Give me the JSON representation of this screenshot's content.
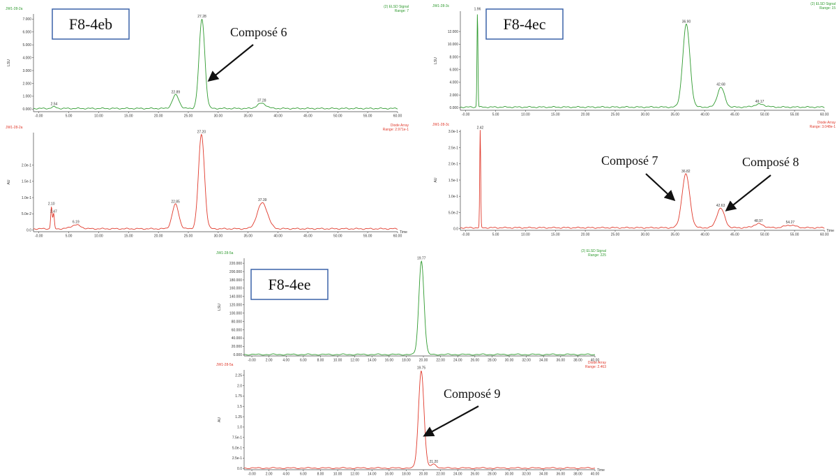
{
  "colors": {
    "elsd": "#2e9a2e",
    "dad": "#e0392b",
    "box_border": "#3a62a8",
    "axis": "#444444"
  },
  "chart_data": [
    {
      "type": "line",
      "sample": "F8-4eb",
      "elsd": {
        "run_id": "JW1-28-2a",
        "signal": "(2) ELSD Signal",
        "range": "Range: 7",
        "ylabel": "LSU",
        "xlim": [
          -0.9,
          60
        ],
        "ylim": [
          -0.2,
          7.4
        ],
        "y_ticks": [
          {
            "v": 0,
            "l": "0.000"
          },
          {
            "v": 1,
            "l": "1.000"
          },
          {
            "v": 2,
            "l": "2.000"
          },
          {
            "v": 3,
            "l": "3.000"
          },
          {
            "v": 4,
            "l": "4.000"
          },
          {
            "v": 5,
            "l": "5.000"
          },
          {
            "v": 6,
            "l": "6.000"
          },
          {
            "v": 7,
            "l": "7.000"
          }
        ],
        "x_ticks": [
          "-0.00",
          "5.00",
          "10.00",
          "15.00",
          "20.00",
          "25.00",
          "30.00",
          "35.00",
          "40.00",
          "45.00",
          "50.00",
          "55.00",
          "60.00"
        ],
        "baseline": 0.05,
        "peaks": [
          {
            "t": 2.54,
            "h": 0.12,
            "w": 0.4,
            "label": "2.54"
          },
          {
            "t": 22.89,
            "h": 1.05,
            "w": 0.55,
            "label": "22.89"
          },
          {
            "t": 27.28,
            "h": 6.95,
            "w": 0.48,
            "label": "27.28"
          },
          {
            "t": 37.28,
            "h": 0.4,
            "w": 0.75,
            "label": "37.28"
          }
        ]
      },
      "dad": {
        "run_id": "JW1-28-2a",
        "signal": "Diode Array",
        "range": "Range: 2.971e-1",
        "ylabel": "AU",
        "xlabel": "Time",
        "xlim": [
          -0.9,
          60
        ],
        "ylim": [
          -0.005,
          0.3
        ],
        "y_ticks": [
          {
            "v": 0,
            "l": "0.0"
          },
          {
            "v": 0.05,
            "l": "5.0e-2"
          },
          {
            "v": 0.1,
            "l": "1.0e-1"
          },
          {
            "v": 0.15,
            "l": "1.5e-1"
          },
          {
            "v": 0.2,
            "l": "2.0e-1"
          }
        ],
        "x_ticks": [
          "-0.00",
          "5.00",
          "10.00",
          "15.00",
          "20.00",
          "25.00",
          "30.00",
          "35.00",
          "40.00",
          "45.00",
          "50.00",
          "55.00",
          "60.00"
        ],
        "baseline": 0.004,
        "peaks": [
          {
            "t": 2.1,
            "h": 0.068,
            "w": 0.12,
            "label": "2.10"
          },
          {
            "t": 2.47,
            "h": 0.045,
            "w": 0.12,
            "label": "2.47"
          },
          {
            "t": 6.19,
            "h": 0.012,
            "w": 0.8,
            "label": "6.19"
          },
          {
            "t": 22.85,
            "h": 0.075,
            "w": 0.55,
            "label": "22.85"
          },
          {
            "t": 27.2,
            "h": 0.29,
            "w": 0.5,
            "label": "27.20"
          },
          {
            "t": 37.39,
            "h": 0.08,
            "w": 0.85,
            "label": "37.39"
          }
        ]
      }
    },
    {
      "type": "line",
      "sample": "F8-4ec",
      "elsd": {
        "run_id": "JW1-28-3c",
        "signal": "(2) ELSD Signal",
        "range": "Range: 15",
        "ylabel": "LSU",
        "xlim": [
          -0.9,
          60
        ],
        "ylim": [
          -0.4,
          15.2
        ],
        "y_ticks": [
          {
            "v": 0,
            "l": "0.000"
          },
          {
            "v": 2,
            "l": "2.000"
          },
          {
            "v": 4,
            "l": "4.000"
          },
          {
            "v": 6,
            "l": "6.000"
          },
          {
            "v": 8,
            "l": "8.000"
          },
          {
            "v": 10,
            "l": "10.000"
          },
          {
            "v": 12,
            "l": "12.000"
          }
        ],
        "x_ticks": [
          "-0.00",
          "5.00",
          "10.00",
          "15.00",
          "20.00",
          "25.00",
          "30.00",
          "35.00",
          "40.00",
          "45.00",
          "50.00",
          "55.00",
          "60.00"
        ],
        "baseline": 0.1,
        "peaks": [
          {
            "t": 1.96,
            "h": 15.0,
            "w": 0.08,
            "label": "1.96"
          },
          {
            "t": 36.9,
            "h": 13.0,
            "w": 0.6,
            "label": "36.90"
          },
          {
            "t": 42.68,
            "h": 3.1,
            "w": 0.6,
            "label": "42.68"
          },
          {
            "t": 49.17,
            "h": 0.45,
            "w": 0.9,
            "label": "49.17"
          }
        ]
      },
      "dad": {
        "run_id": "JW1-28-3c",
        "signal": "Diode Array",
        "range": "Range: 3.048e-1",
        "ylabel": "AU",
        "xlabel": "Time",
        "xlim": [
          -0.9,
          60
        ],
        "ylim": [
          -0.005,
          0.305
        ],
        "y_ticks": [
          {
            "v": 0,
            "l": "0.0"
          },
          {
            "v": 0.05,
            "l": "5.0e-2"
          },
          {
            "v": 0.1,
            "l": "1.0e-1"
          },
          {
            "v": 0.15,
            "l": "1.5e-1"
          },
          {
            "v": 0.2,
            "l": "2.0e-1"
          },
          {
            "v": 0.25,
            "l": "2.5e-1"
          },
          {
            "v": 0.3,
            "l": "3.0e-1"
          }
        ],
        "x_ticks": [
          "-0.00",
          "5.00",
          "10.00",
          "15.00",
          "20.00",
          "25.00",
          "30.00",
          "35.00",
          "40.00",
          "45.00",
          "50.00",
          "55.00",
          "60.00"
        ],
        "baseline": 0.003,
        "peaks": [
          {
            "t": 2.42,
            "h": 0.3,
            "w": 0.08,
            "label": "2.42"
          },
          {
            "t": 36.82,
            "h": 0.165,
            "w": 0.65,
            "label": "36.82"
          },
          {
            "t": 42.63,
            "h": 0.06,
            "w": 0.65,
            "label": "42.63"
          },
          {
            "t": 48.97,
            "h": 0.012,
            "w": 0.8,
            "label": "48.97"
          },
          {
            "t": 54.27,
            "h": 0.008,
            "w": 0.9,
            "label": "54.27"
          }
        ]
      }
    },
    {
      "type": "line",
      "sample": "F8-4ee",
      "elsd": {
        "run_id": "JW1-28-5a",
        "signal": "(2) ELSD Signal",
        "range": "Range: 225",
        "ylabel": "LSU",
        "xlim": [
          -0.9,
          40
        ],
        "ylim": [
          -3,
          232
        ],
        "y_ticks": [
          {
            "v": 0,
            "l": "0.000"
          },
          {
            "v": 20,
            "l": "20.000"
          },
          {
            "v": 40,
            "l": "40.000"
          },
          {
            "v": 60,
            "l": "60.000"
          },
          {
            "v": 80,
            "l": "80.000"
          },
          {
            "v": 100,
            "l": "100.000"
          },
          {
            "v": 120,
            "l": "120.000"
          },
          {
            "v": 140,
            "l": "140.000"
          },
          {
            "v": 160,
            "l": "160.000"
          },
          {
            "v": 180,
            "l": "180.000"
          },
          {
            "v": 200,
            "l": "200.000"
          },
          {
            "v": 220,
            "l": "220.000"
          }
        ],
        "x_ticks": [
          "-0.00",
          "2.00",
          "4.00",
          "6.00",
          "8.00",
          "10.00",
          "12.00",
          "14.00",
          "16.00",
          "18.00",
          "20.00",
          "22.00",
          "24.00",
          "26.00",
          "28.00",
          "30.00",
          "32.00",
          "34.00",
          "36.00",
          "38.00",
          "40.00"
        ],
        "baseline": 0.5,
        "peaks": [
          {
            "t": 19.77,
            "h": 225,
            "w": 0.3,
            "label": "19.77"
          }
        ]
      },
      "dad": {
        "run_id": "JW1-28-5a",
        "signal": "Diode Array",
        "range": "Range: 2.463",
        "ylabel": "AU",
        "xlabel": "Time",
        "xlim": [
          -0.9,
          40
        ],
        "ylim": [
          -0.03,
          2.38
        ],
        "y_ticks": [
          {
            "v": 0,
            "l": "0.0"
          },
          {
            "v": 0.25,
            "l": "2.5e-1"
          },
          {
            "v": 0.5,
            "l": "5.0e-1"
          },
          {
            "v": 0.75,
            "l": "7.5e-1"
          },
          {
            "v": 1,
            "l": "1.0"
          },
          {
            "v": 1.25,
            "l": "1.25"
          },
          {
            "v": 1.5,
            "l": "1.5"
          },
          {
            "v": 1.75,
            "l": "1.75"
          },
          {
            "v": 2,
            "l": "2.0"
          },
          {
            "v": 2.25,
            "l": "2.25"
          }
        ],
        "x_ticks": [
          "-0.00",
          "2.00",
          "4.00",
          "6.00",
          "8.00",
          "10.00",
          "12.00",
          "14.00",
          "16.00",
          "18.00",
          "20.00",
          "22.00",
          "24.00",
          "26.00",
          "28.00",
          "30.00",
          "32.00",
          "34.00",
          "36.00",
          "38.00",
          "40.00"
        ],
        "baseline": 0.01,
        "peaks": [
          {
            "t": 19.75,
            "h": 2.35,
            "w": 0.32,
            "label": "19.75"
          },
          {
            "t": 21.2,
            "h": 0.09,
            "w": 0.35,
            "label": "21.20"
          }
        ]
      }
    }
  ],
  "annotations": [
    {
      "id": "c6",
      "text": "Composé 6"
    },
    {
      "id": "c7",
      "text": "Composé 7"
    },
    {
      "id": "c8",
      "text": "Composé 8"
    },
    {
      "id": "c9",
      "text": "Composé 9"
    }
  ]
}
